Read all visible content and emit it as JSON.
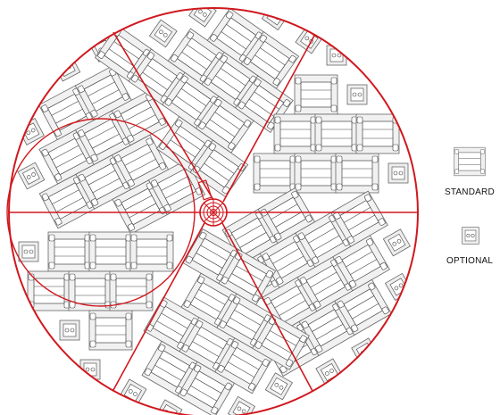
{
  "legend": {
    "standard_label": "STANDARD",
    "optional_label": "OPTIONAL"
  },
  "symbols": {
    "standard": "desk-unit-icon",
    "optional": "small-unit-icon"
  },
  "colors": {
    "outline_red": "#d0181e",
    "unit_stroke": "#555555",
    "unit_fill": "#e8e8e8",
    "background": "#ffffff"
  }
}
